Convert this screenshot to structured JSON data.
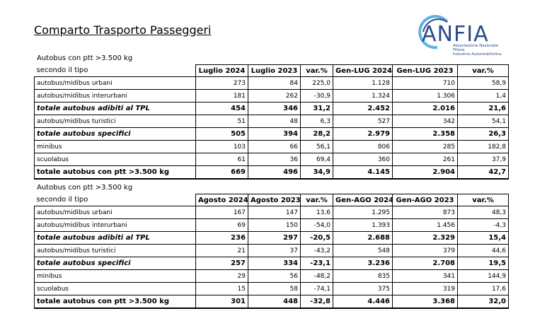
{
  "title": "Comparto Trasporto Passeggeri",
  "logo": {
    "name": "ANFIA",
    "sub1": "Associazione Nazionale",
    "sub2": "Filiera",
    "sub3": "Industria Automobilistica"
  },
  "t1": {
    "caption": "Autobus con ptt >3.500 kg",
    "row_header": "secondo il tipo",
    "cols": [
      "Luglio 2024",
      "Luglio 2023",
      "var.%",
      "Gen-LUG 2024",
      "Gen-LUG 2023",
      "var.%"
    ],
    "rows": [
      [
        "autobus/midibus urbani",
        "273",
        "84",
        "225,0",
        "1.128",
        "710",
        "58,9"
      ],
      [
        "autobus/midibus interurbani",
        "181",
        "262",
        "-30,9",
        "1.324",
        "1.306",
        "1,4"
      ],
      [
        "totale autobus adibiti al TPL",
        "454",
        "346",
        "31,2",
        "2.452",
        "2.016",
        "21,6"
      ],
      [
        "autobus/midibus turistici",
        "51",
        "48",
        "6,3",
        "527",
        "342",
        "54,1"
      ],
      [
        "totale autobus specifici",
        "505",
        "394",
        "28,2",
        "2.979",
        "2.358",
        "26,3"
      ],
      [
        "minibus",
        "103",
        "66",
        "56,1",
        "806",
        "285",
        "182,8"
      ],
      [
        "scuolabus",
        "61",
        "36",
        "69,4",
        "360",
        "261",
        "37,9"
      ],
      [
        "totale autobus con ptt >3.500 kg",
        "669",
        "496",
        "34,9",
        "4.145",
        "2.904",
        "42,7"
      ]
    ]
  },
  "t2": {
    "caption": "Autobus con ptt >3.500 kg",
    "row_header": "secondo il tipo",
    "cols": [
      "Agosto 2024",
      "Agosto 2023",
      "var.%",
      "Gen-AGO 2024",
      "Gen-AGO 2023",
      "var.%"
    ],
    "rows": [
      [
        "autobus/midibus urbani",
        "167",
        "147",
        "13,6",
        "1.295",
        "873",
        "48,3"
      ],
      [
        "autobus/midibus interurbani",
        "69",
        "150",
        "-54,0",
        "1.393",
        "1.456",
        "-4,3"
      ],
      [
        "totale autobus adibiti al TPL",
        "236",
        "297",
        "-20,5",
        "2.688",
        "2.329",
        "15,4"
      ],
      [
        "autobus/midibus turistici",
        "21",
        "37",
        "-43,2",
        "548",
        "379",
        "44,6"
      ],
      [
        "totale autobus specifici",
        "257",
        "334",
        "-23,1",
        "3.236",
        "2.708",
        "19,5"
      ],
      [
        "minibus",
        "29",
        "56",
        "-48,2",
        "835",
        "341",
        "144,9"
      ],
      [
        "scuolabus",
        "15",
        "58",
        "-74,1",
        "375",
        "319",
        "17,6"
      ],
      [
        "totale autobus con ptt >3.500 kg",
        "301",
        "448",
        "-32,8",
        "4.446",
        "3.368",
        "32,0"
      ]
    ]
  }
}
